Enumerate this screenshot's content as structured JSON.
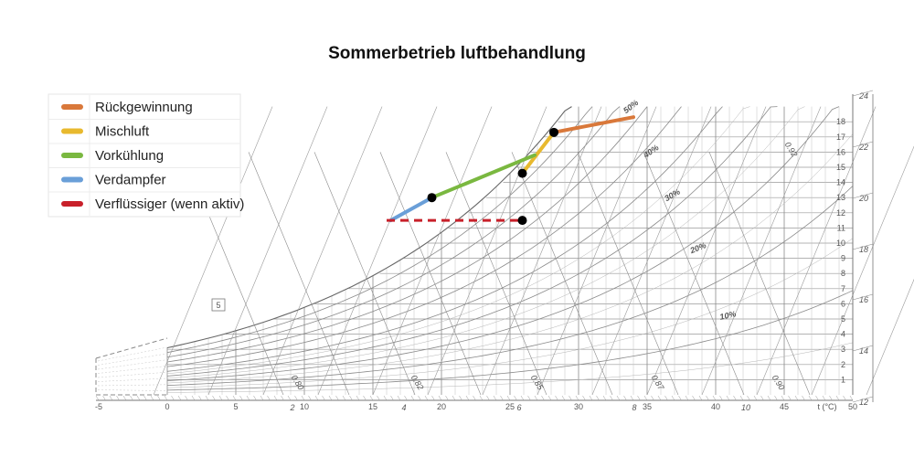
{
  "chart_data": {
    "type": "line",
    "title": "Sommerbetrieb luftbehandlung",
    "x_unit_label": "t (°C)",
    "x_ticks": [
      "-5",
      "0",
      "5",
      "10",
      "15",
      "20",
      "25",
      "30",
      "35",
      "40",
      "45",
      "50"
    ],
    "x_range": [
      -5,
      50
    ],
    "x_secondary_ticks": [
      "2",
      "4",
      "6",
      "8",
      "10"
    ],
    "y_right_ticks": [
      "1",
      "2",
      "3",
      "4",
      "5",
      "6",
      "7",
      "8",
      "9",
      "10",
      "11",
      "12",
      "13",
      "14",
      "15",
      "16",
      "17",
      "18"
    ],
    "y_range": [
      0,
      19
    ],
    "y_far_right_ticks": [
      "12",
      "14",
      "16",
      "18",
      "20",
      "22",
      "24"
    ],
    "rh_curve_labels": [
      "10%",
      "20%",
      "30%",
      "40%",
      "50%"
    ],
    "volume_labels": [
      "0.80",
      "0.82",
      "0.85",
      "0.87",
      "0.90",
      "0.92"
    ],
    "box_label": "5",
    "grid": true,
    "legend_position": "top-left",
    "series": [
      {
        "name": "Rückgewinnung",
        "color": "#d9783a",
        "dashed": false,
        "x": [
          28.2,
          34.0
        ],
        "y": [
          17.3,
          18.3
        ]
      },
      {
        "name": "Mischluft",
        "color": "#e8b92e",
        "dashed": false,
        "x": [
          25.9,
          28.2
        ],
        "y": [
          14.6,
          17.3
        ]
      },
      {
        "name": "Vorkühlung",
        "color": "#7ab840",
        "dashed": false,
        "x": [
          19.3,
          26.8
        ],
        "y": [
          13.0,
          15.8
        ]
      },
      {
        "name": "Verdampfer",
        "color": "#6a9fd8",
        "dashed": false,
        "x": [
          16.3,
          19.3
        ],
        "y": [
          11.5,
          13.0
        ]
      },
      {
        "name": "Verflüssiger (wenn aktiv)",
        "color": "#c8202a",
        "dashed": true,
        "x": [
          16.0,
          25.9
        ],
        "y": [
          11.5,
          11.5
        ]
      }
    ],
    "state_points": [
      {
        "x": 19.3,
        "y": 13.0
      },
      {
        "x": 25.9,
        "y": 14.6
      },
      {
        "x": 28.2,
        "y": 17.3
      },
      {
        "x": 25.9,
        "y": 11.5
      }
    ]
  }
}
